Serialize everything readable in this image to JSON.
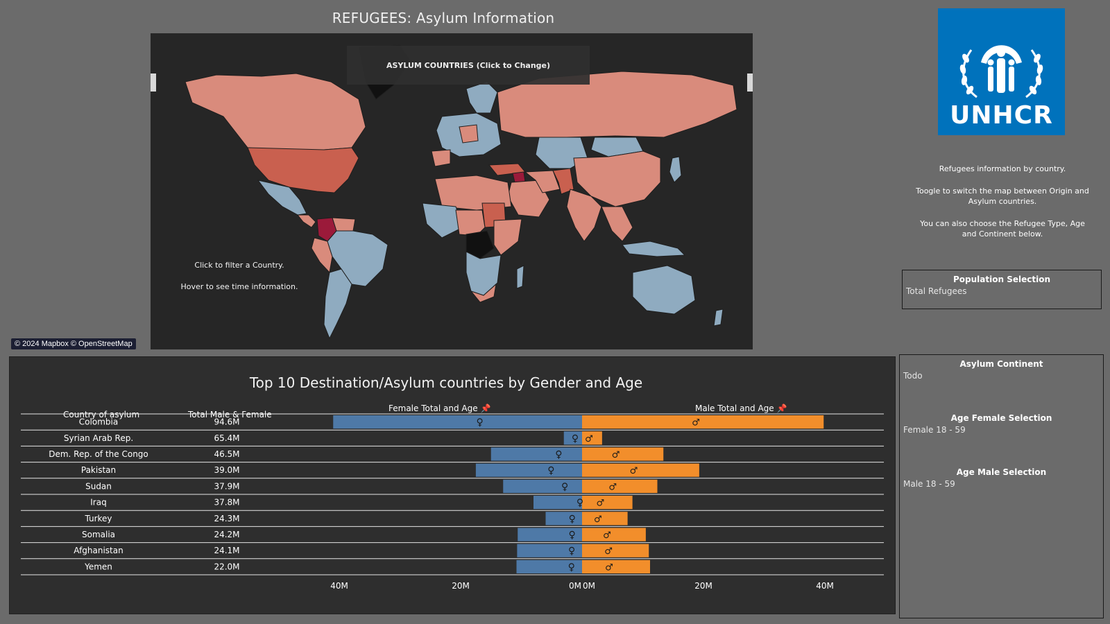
{
  "dashboard": {
    "title": "REFUGEES: Asylum Information"
  },
  "map": {
    "toggle_label": "ASYLUM COUNTRIES (Click to Change)",
    "hint_filter": "Click to filter a Country.",
    "hint_hover": "Hover to see time information.",
    "attribution": "© 2024 Mapbox © OpenStreetMap",
    "colors": {
      "ocean": "#262626",
      "low": "#8fabc0",
      "mid": "#d98b7c",
      "high": "#c9604f",
      "top": "#9b1a3a",
      "none": "#111111"
    }
  },
  "logo": {
    "text": "UNHCR",
    "background": "#0072bc"
  },
  "info": {
    "line1": "Refugees information by country.",
    "line2": "Toogle to switch the map between Origin and Asylum countries.",
    "line3": "You can also choose the Refugee Type, Age and Continent below."
  },
  "filters": {
    "population": {
      "title": "Population Selection",
      "value": "Total Refugees"
    },
    "continent": {
      "title": "Asylum Continent",
      "value": "Todo"
    },
    "age_female": {
      "title": "Age Female Selection",
      "value": "Female 18 - 59"
    },
    "age_male": {
      "title": "Age Male Selection",
      "value": "Male 18 - 59"
    }
  },
  "chart_data": {
    "type": "bar",
    "title": "Top 10 Destination/Asylum countries by Gender and Age",
    "columns": {
      "country": "Country of asylum",
      "total": "Total Male & Female",
      "female": "Female Total and Age",
      "male": "Male Total and Age"
    },
    "categories": [
      "Colombia",
      "Syrian Arab Rep.",
      "Dem. Rep. of the Congo",
      "Pakistan",
      "Sudan",
      "Iraq",
      "Turkey",
      "Somalia",
      "Afghanistan",
      "Yemen"
    ],
    "totals": [
      "94.6M",
      "65.4M",
      "46.5M",
      "39.0M",
      "37.9M",
      "37.8M",
      "24.3M",
      "24.2M",
      "24.1M",
      "22.0M"
    ],
    "series": [
      {
        "name": "Female Total and Age",
        "color": "#4e79a7",
        "values": [
          41.0,
          3.0,
          15.0,
          17.5,
          13.0,
          8.0,
          6.0,
          10.6,
          10.7,
          10.8
        ]
      },
      {
        "name": "Male Total and Age",
        "color": "#f28e2b",
        "values": [
          39.8,
          3.3,
          13.4,
          19.3,
          12.4,
          8.3,
          7.5,
          10.5,
          11.0,
          11.2
        ]
      }
    ],
    "female_axis": {
      "ticks": [
        "40M",
        "20M",
        "0M"
      ],
      "range": [
        0,
        40
      ]
    },
    "male_axis": {
      "ticks": [
        "0M",
        "20M",
        "40M"
      ],
      "range": [
        0,
        40
      ]
    },
    "female_symbol": "♀",
    "male_symbol": "♂"
  }
}
